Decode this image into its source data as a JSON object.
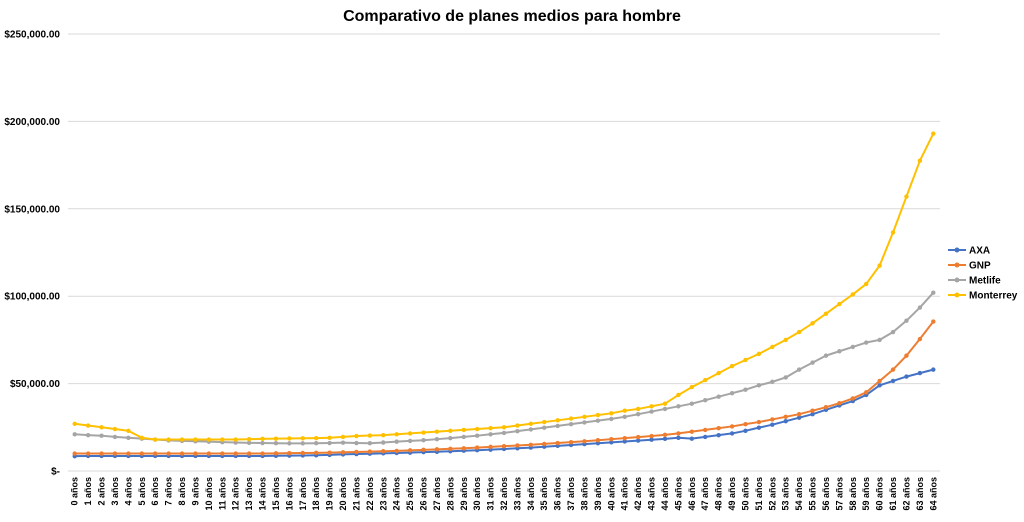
{
  "chart_data": {
    "type": "line",
    "title": "Comparativo de planes medios para hombre",
    "ylim": [
      0,
      250000
    ],
    "yticks": [
      0,
      50000,
      100000,
      150000,
      200000,
      250000
    ],
    "ytick_labels": [
      "$-",
      "$50,000.00",
      "$100,000.00",
      "$150,000.00",
      "$200,000.00",
      "$250,000.00"
    ],
    "grid": true,
    "legend_position": "right",
    "x": [
      "0 años",
      "1 años",
      "2 años",
      "3 años",
      "4 años",
      "5 años",
      "6 años",
      "7 años",
      "8 años",
      "9 años",
      "10 años",
      "11 años",
      "12 años",
      "13 años",
      "14 años",
      "15 años",
      "16 años",
      "17 años",
      "18 años",
      "19 años",
      "20 años",
      "21 años",
      "22 años",
      "23 años",
      "24 años",
      "25 años",
      "26 años",
      "27 años",
      "28 años",
      "29 años",
      "30 años",
      "31 años",
      "32 años",
      "33 años",
      "34 años",
      "35 años",
      "36 años",
      "37 años",
      "38 años",
      "39 años",
      "40 años",
      "41 años",
      "42 años",
      "43 años",
      "44 años",
      "45 años",
      "46 años",
      "47 años",
      "48 años",
      "49 años",
      "50 años",
      "51 años",
      "52 años",
      "53 años",
      "54 años",
      "55 años",
      "56 años",
      "57 años",
      "58 años",
      "59 años",
      "60 años",
      "61 años",
      "62 años",
      "63 años",
      "64 años"
    ],
    "series": [
      {
        "name": "AXA",
        "color": "#4472C4",
        "values": [
          8500,
          8600,
          8600,
          8600,
          8600,
          8600,
          8600,
          8600,
          8600,
          8600,
          8600,
          8600,
          8600,
          8600,
          8600,
          8700,
          8800,
          8900,
          9000,
          9200,
          9500,
          9700,
          9900,
          10100,
          10300,
          10500,
          10800,
          11000,
          11300,
          11600,
          11900,
          12200,
          12600,
          13000,
          13400,
          13900,
          14400,
          14900,
          15400,
          15900,
          16400,
          16900,
          17400,
          17900,
          18400,
          19000,
          18500,
          19500,
          20500,
          21500,
          23000,
          24800,
          26500,
          28500,
          30500,
          32500,
          35000,
          37500,
          40000,
          43500,
          49000,
          51500,
          54000,
          56000,
          58000
        ]
      },
      {
        "name": "GNP",
        "color": "#ED7D31",
        "values": [
          10000,
          10000,
          10000,
          10000,
          10000,
          10000,
          10000,
          10000,
          10000,
          10000,
          10000,
          10000,
          10000,
          10000,
          10000,
          10100,
          10200,
          10300,
          10400,
          10500,
          10700,
          10900,
          11100,
          11300,
          11500,
          11800,
          12100,
          12400,
          12700,
          13000,
          13400,
          13800,
          14200,
          14600,
          15000,
          15500,
          16000,
          16500,
          17000,
          17600,
          18200,
          18800,
          19400,
          20000,
          20700,
          21500,
          22500,
          23500,
          24500,
          25500,
          26800,
          28000,
          29500,
          31000,
          32500,
          34500,
          36500,
          38800,
          41500,
          45000,
          51500,
          58000,
          66000,
          75500,
          85500
        ]
      },
      {
        "name": "Metlife",
        "color": "#A5A5A5",
        "values": [
          21000,
          20500,
          20200,
          19500,
          19000,
          18500,
          18000,
          17500,
          17200,
          17000,
          16800,
          16500,
          16300,
          16100,
          16000,
          15900,
          15800,
          15800,
          15900,
          16000,
          16200,
          16000,
          15900,
          16300,
          16800,
          17200,
          17600,
          18200,
          18800,
          19500,
          20200,
          21000,
          21800,
          22800,
          23800,
          24800,
          25800,
          26800,
          27800,
          28800,
          29800,
          31000,
          32500,
          34000,
          35500,
          37000,
          38500,
          40500,
          42500,
          44500,
          46500,
          49000,
          51000,
          53500,
          58000,
          62000,
          66000,
          68500,
          71000,
          73500,
          75000,
          79500,
          86000,
          93500,
          102000
        ]
      },
      {
        "name": "Monterrey",
        "color": "#FFC000",
        "values": [
          27000,
          26000,
          25000,
          24000,
          23000,
          19000,
          18000,
          18000,
          18000,
          18000,
          18000,
          18000,
          18000,
          18200,
          18400,
          18500,
          18600,
          18700,
          18800,
          19000,
          19500,
          20000,
          20300,
          20500,
          21000,
          21500,
          22000,
          22500,
          23000,
          23500,
          24000,
          24500,
          25000,
          26000,
          27000,
          28000,
          29000,
          30000,
          31000,
          32000,
          33000,
          34500,
          35500,
          37000,
          38500,
          43500,
          48000,
          52000,
          56000,
          60000,
          63500,
          67000,
          71000,
          75000,
          79500,
          84500,
          90000,
          95500,
          101000,
          107000,
          117500,
          136500,
          157000,
          177500,
          193000
        ]
      }
    ]
  }
}
